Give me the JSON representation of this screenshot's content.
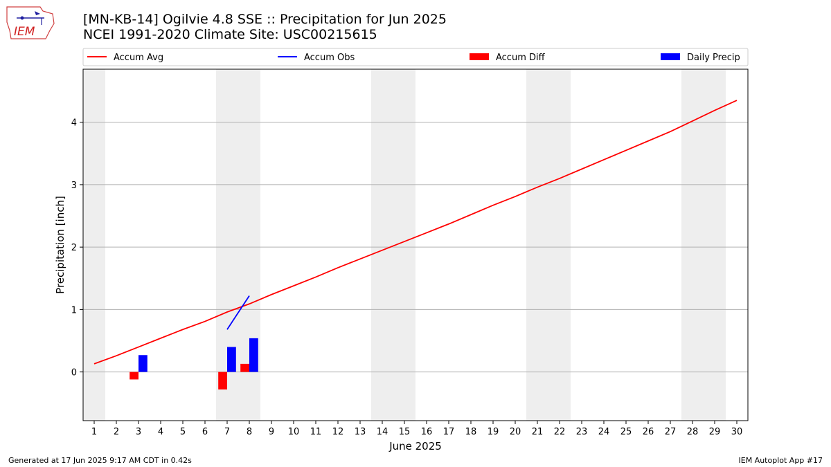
{
  "header": {
    "logo_text": "IEM",
    "title_line1": "[MN-KB-14] Ogilvie 4.8 SSE :: Precipitation for Jun 2025",
    "title_line2": "NCEI 1991-2020 Climate Site: USC00215615"
  },
  "footer": {
    "left": "Generated at 17 Jun 2025 9:17 AM CDT in 0.42s",
    "right": "IEM Autoplot App #17"
  },
  "colors": {
    "accum_avg": "#ff0000",
    "accum_obs": "#0000ff",
    "accum_diff": "#ff0000",
    "daily_precip": "#0000ff",
    "weekend_band": "#eeeeee",
    "grid": "#b0b0b0"
  },
  "chart_data": {
    "type": "bar",
    "title": "[MN-KB-14] Ogilvie 4.8 SSE :: Precipitation for Jun 2025",
    "subtitle": "NCEI 1991-2020 Climate Site: USC00215615",
    "xlabel": "June 2025",
    "ylabel": "Precipitation [inch]",
    "xlim": [
      0.5,
      30.5
    ],
    "ylim": [
      -0.78,
      4.85
    ],
    "yticks": [
      0,
      1,
      2,
      3,
      4
    ],
    "x_ticks": [
      1,
      2,
      3,
      4,
      5,
      6,
      7,
      8,
      9,
      10,
      11,
      12,
      13,
      14,
      15,
      16,
      17,
      18,
      19,
      20,
      21,
      22,
      23,
      24,
      25,
      26,
      27,
      28,
      29,
      30
    ],
    "grid": "y-major",
    "legend_position": "top",
    "weekend_bands": [
      [
        0.5,
        1.5
      ],
      [
        6.5,
        8.5
      ],
      [
        13.5,
        15.5
      ],
      [
        20.5,
        22.5
      ],
      [
        27.5,
        29.5
      ]
    ],
    "legend": [
      "Accum Avg",
      "Accum Obs",
      "Accum Diff",
      "Daily Precip"
    ],
    "series": [
      {
        "name": "Accum Avg",
        "kind": "line",
        "x": [
          1,
          2,
          3,
          4,
          5,
          6,
          7,
          8,
          9,
          10,
          11,
          12,
          13,
          14,
          15,
          16,
          17,
          18,
          19,
          20,
          21,
          22,
          23,
          24,
          25,
          26,
          27,
          28,
          29,
          30
        ],
        "values": [
          0.13,
          0.26,
          0.4,
          0.54,
          0.68,
          0.81,
          0.96,
          1.09,
          1.24,
          1.38,
          1.52,
          1.67,
          1.81,
          1.95,
          2.09,
          2.23,
          2.37,
          2.52,
          2.67,
          2.81,
          2.96,
          3.1,
          3.25,
          3.4,
          3.55,
          3.7,
          3.85,
          4.02,
          4.19,
          4.35
        ]
      },
      {
        "name": "Accum Obs",
        "kind": "line",
        "x": [
          7,
          8
        ],
        "values": [
          0.68,
          1.22
        ]
      },
      {
        "name": "Accum Diff",
        "kind": "bar",
        "x": [
          3,
          7,
          8
        ],
        "values": [
          -0.12,
          -0.28,
          0.13
        ]
      },
      {
        "name": "Daily Precip",
        "kind": "bar",
        "x": [
          3,
          7,
          8
        ],
        "values": [
          0.27,
          0.4,
          0.54
        ]
      }
    ]
  }
}
